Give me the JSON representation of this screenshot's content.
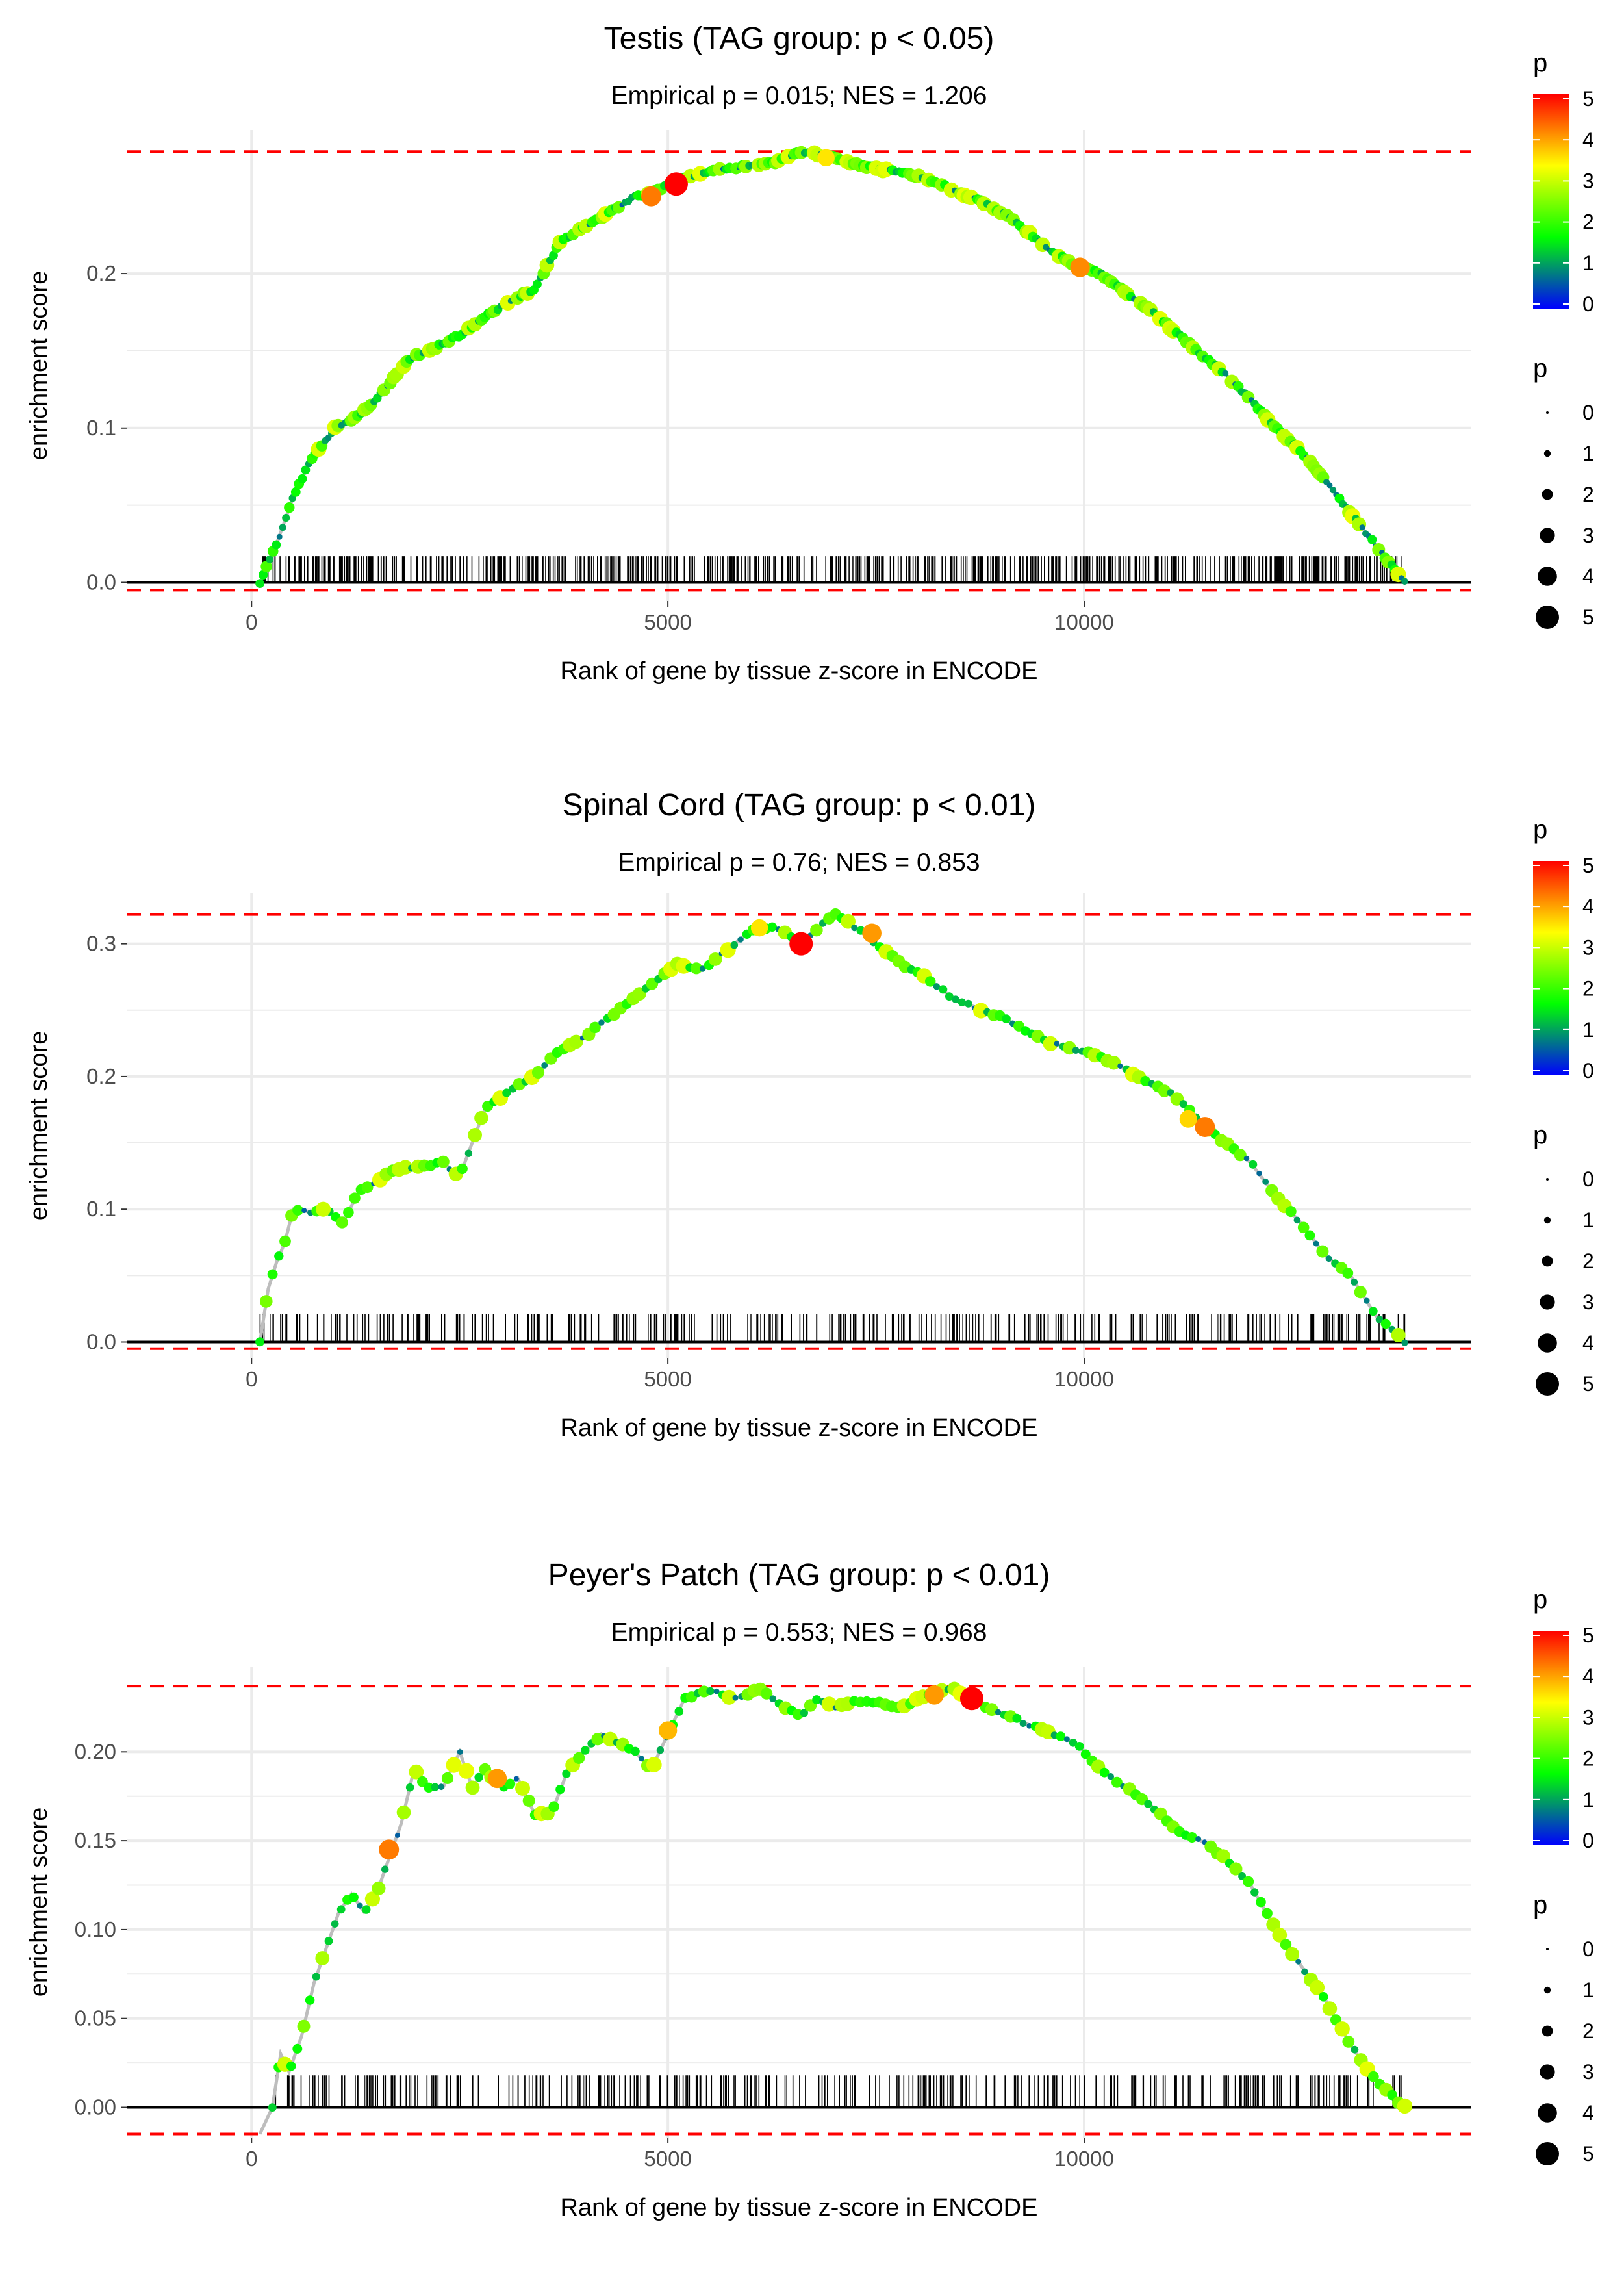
{
  "colors": {
    "gradient": [
      "#0000ff",
      "#00ff00",
      "#ffff00",
      "#ff0000"
    ],
    "ref_line": "#ff0000",
    "es_line": "#bdbdbd",
    "grid": "#ebebeb",
    "rug": "#000000"
  },
  "chart_data": [
    {
      "type": "line",
      "title": "Testis (TAG group: p < 0.05)",
      "subtitle": "Empirical p = 0.015; NES = 1.206",
      "xlabel": "Rank of gene by tissue z-score in ENCODE",
      "ylabel": "enrichment score",
      "xlim": [
        -1500,
        14650
      ],
      "ylim": [
        -0.012,
        0.293
      ],
      "x_ticks": [
        0,
        5000,
        10000
      ],
      "x_tick_labels": [
        "0",
        "5000",
        "10000"
      ],
      "y_ticks": [
        0,
        0.1,
        0.2
      ],
      "y_tick_labels": [
        "0.0",
        "0.1",
        "0.2"
      ],
      "max_es": 0.279,
      "min_es": -0.005,
      "rug_range": [
        100,
        13850
      ],
      "rug_count": 640,
      "rug_height": 0.017,
      "curve": {
        "x": [
          100,
          300,
          500,
          700,
          1000,
          1300,
          1600,
          1900,
          2200,
          2500,
          2800,
          3100,
          3400,
          3700,
          4000,
          4300,
          4600,
          4800,
          5100,
          5400,
          5700,
          6000,
          6300,
          6600,
          6900,
          7200,
          7500,
          7800,
          8100,
          8400,
          8700,
          9000,
          9300,
          9600,
          9900,
          10200,
          10500,
          10800,
          11100,
          11400,
          11700,
          12000,
          12300,
          12600,
          12900,
          13200,
          13500,
          13850
        ],
        "y": [
          0.0,
          0.025,
          0.055,
          0.078,
          0.1,
          0.108,
          0.125,
          0.145,
          0.152,
          0.16,
          0.172,
          0.182,
          0.19,
          0.22,
          0.23,
          0.24,
          0.25,
          0.252,
          0.26,
          0.265,
          0.268,
          0.27,
          0.272,
          0.279,
          0.276,
          0.272,
          0.268,
          0.266,
          0.262,
          0.255,
          0.248,
          0.24,
          0.228,
          0.215,
          0.205,
          0.2,
          0.188,
          0.176,
          0.162,
          0.148,
          0.135,
          0.118,
          0.1,
          0.085,
          0.066,
          0.045,
          0.024,
          0.0
        ]
      },
      "highlights": [
        {
          "x": 5100,
          "y": 0.258,
          "p": 5
        },
        {
          "x": 4800,
          "y": 0.25,
          "p": 4.2
        },
        {
          "x": 6900,
          "y": 0.275,
          "p": 3.5
        },
        {
          "x": 9950,
          "y": 0.204,
          "p": 4.1
        }
      ]
    },
    {
      "type": "line",
      "title": "Spinal Cord (TAG group: p < 0.01)",
      "subtitle": "Empirical p = 0.76; NES = 0.853",
      "xlabel": "Rank of gene by tissue z-score in ENCODE",
      "ylabel": "enrichment score",
      "xlim": [
        -1500,
        14650
      ],
      "ylim": [
        -0.012,
        0.338
      ],
      "x_ticks": [
        0,
        5000,
        10000
      ],
      "x_tick_labels": [
        "0",
        "5000",
        "10000"
      ],
      "y_ticks": [
        0,
        0.1,
        0.2,
        0.3
      ],
      "y_tick_labels": [
        "0.0",
        "0.1",
        "0.2",
        "0.3"
      ],
      "max_es": 0.322,
      "min_es": -0.005,
      "rug_range": [
        100,
        13850
      ],
      "rug_count": 330,
      "rug_height": 0.021,
      "curve": {
        "x": [
          100,
          200,
          300,
          400,
          500,
          700,
          900,
          1100,
          1300,
          1500,
          1700,
          2000,
          2300,
          2500,
          2800,
          3100,
          3400,
          3700,
          4000,
          4300,
          4600,
          4900,
          5100,
          5400,
          5700,
          6000,
          6300,
          6600,
          6800,
          7000,
          7200,
          7500,
          7800,
          8100,
          8400,
          8700,
          9000,
          9300,
          9600,
          9900,
          10200,
          10500,
          10800,
          11100,
          11400,
          11700,
          12000,
          12300,
          12600,
          12900,
          13200,
          13500,
          13850
        ],
        "y": [
          0.0,
          0.04,
          0.06,
          0.075,
          0.1,
          0.098,
          0.1,
          0.09,
          0.115,
          0.12,
          0.13,
          0.132,
          0.135,
          0.125,
          0.175,
          0.19,
          0.2,
          0.22,
          0.23,
          0.245,
          0.26,
          0.275,
          0.285,
          0.28,
          0.295,
          0.31,
          0.312,
          0.3,
          0.312,
          0.322,
          0.315,
          0.3,
          0.285,
          0.275,
          0.26,
          0.252,
          0.245,
          0.235,
          0.225,
          0.22,
          0.215,
          0.205,
          0.195,
          0.185,
          0.165,
          0.15,
          0.135,
          0.11,
          0.09,
          0.065,
          0.05,
          0.02,
          0.0
        ]
      },
      "highlights": [
        {
          "x": 6600,
          "y": 0.3,
          "p": 5
        },
        {
          "x": 7450,
          "y": 0.308,
          "p": 4
        },
        {
          "x": 6100,
          "y": 0.312,
          "p": 3.5
        },
        {
          "x": 11450,
          "y": 0.162,
          "p": 4.2
        },
        {
          "x": 11250,
          "y": 0.168,
          "p": 3.6
        },
        {
          "x": 860,
          "y": 0.1,
          "p": 3
        }
      ]
    },
    {
      "type": "line",
      "title": "Peyer's Patch (TAG group: p < 0.01)",
      "subtitle": "Empirical p = 0.553; NES = 0.968",
      "xlabel": "Rank of gene by tissue z-score in ENCODE",
      "ylabel": "enrichment score",
      "xlim": [
        -1500,
        14650
      ],
      "ylim": [
        -0.017,
        0.248
      ],
      "x_ticks": [
        0,
        5000,
        10000
      ],
      "x_tick_labels": [
        "0",
        "5000",
        "10000"
      ],
      "y_ticks": [
        0,
        0.05,
        0.1,
        0.15,
        0.2
      ],
      "y_tick_labels": [
        "0.00",
        "0.05",
        "0.10",
        "0.15",
        "0.20"
      ],
      "max_es": 0.237,
      "min_es": -0.015,
      "rug_range": [
        250,
        13850
      ],
      "rug_count": 330,
      "rug_height": 0.018,
      "curve": {
        "x": [
          100,
          250,
          350,
          450,
          600,
          750,
          900,
          1050,
          1200,
          1350,
          1500,
          1650,
          1800,
          1950,
          2100,
          2300,
          2500,
          2650,
          2800,
          3000,
          3200,
          3400,
          3600,
          3800,
          4000,
          4200,
          4400,
          4600,
          4800,
          5000,
          5200,
          5500,
          5800,
          6100,
          6400,
          6600,
          6800,
          7000,
          7200,
          7500,
          7800,
          8100,
          8400,
          8700,
          9000,
          9300,
          9600,
          9900,
          10200,
          10500,
          10800,
          11100,
          11400,
          11700,
          12000,
          12300,
          12600,
          12900,
          13200,
          13500,
          13850
        ],
        "y": [
          -0.015,
          0.0,
          0.03,
          0.02,
          0.04,
          0.07,
          0.09,
          0.11,
          0.12,
          0.11,
          0.12,
          0.14,
          0.16,
          0.19,
          0.18,
          0.18,
          0.2,
          0.18,
          0.19,
          0.18,
          0.185,
          0.165,
          0.165,
          0.19,
          0.2,
          0.21,
          0.205,
          0.2,
          0.19,
          0.21,
          0.23,
          0.235,
          0.23,
          0.235,
          0.225,
          0.22,
          0.23,
          0.225,
          0.228,
          0.228,
          0.225,
          0.232,
          0.236,
          0.228,
          0.222,
          0.216,
          0.21,
          0.205,
          0.19,
          0.18,
          0.17,
          0.156,
          0.15,
          0.14,
          0.125,
          0.1,
          0.08,
          0.06,
          0.035,
          0.015,
          0.0
        ]
      },
      "highlights": [
        {
          "x": 8650,
          "y": 0.23,
          "p": 5
        },
        {
          "x": 8200,
          "y": 0.232,
          "p": 4
        },
        {
          "x": 5000,
          "y": 0.212,
          "p": 3.8
        },
        {
          "x": 1650,
          "y": 0.145,
          "p": 4.2
        },
        {
          "x": 2950,
          "y": 0.185,
          "p": 4
        }
      ]
    }
  ],
  "legends": [
    {
      "color_title": "p",
      "color_ticks": [
        "0",
        "1",
        "2",
        "3",
        "4",
        "5"
      ],
      "size_title": "p",
      "size_ticks": [
        "0",
        "1",
        "2",
        "3",
        "4",
        "5"
      ]
    },
    {
      "color_title": "p",
      "color_ticks": [
        "0",
        "1",
        "2",
        "3",
        "4",
        "5"
      ],
      "size_title": "p",
      "size_ticks": [
        "0",
        "1",
        "2",
        "3",
        "4",
        "5"
      ]
    },
    {
      "color_title": "p",
      "color_ticks": [
        "0",
        "1",
        "2",
        "3",
        "4",
        "5"
      ],
      "size_title": "p",
      "size_ticks": [
        "0",
        "1",
        "2",
        "3",
        "4",
        "5"
      ]
    }
  ]
}
